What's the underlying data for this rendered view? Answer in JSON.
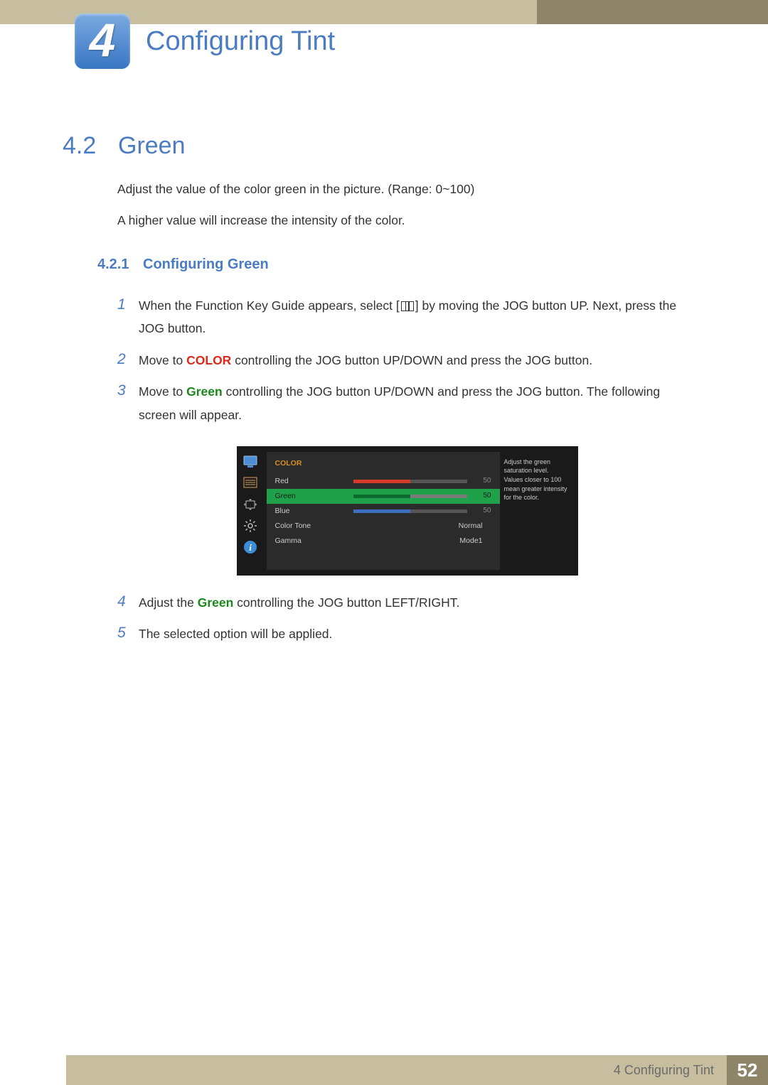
{
  "header": {
    "chapter_number": "4",
    "title": "Configuring Tint"
  },
  "section": {
    "number": "4.2",
    "title": "Green",
    "intro_1": "Adjust the value of the color green in the picture. (Range: 0~100)",
    "intro_2": "A higher value will increase the intensity of the color."
  },
  "subsection": {
    "number": "4.2.1",
    "title": "Configuring Green"
  },
  "steps": {
    "s1a": "When the Function Key Guide appears, select [",
    "s1b": "] by moving the JOG button UP. Next, press the JOG button.",
    "s2a": "Move to ",
    "s2_color": "COLOR",
    "s2b": " controlling the JOG button UP/DOWN and press the JOG button.",
    "s3a": "Move to ",
    "s3_green": "Green",
    "s3b": " controlling the JOG button UP/DOWN and press the JOG button. The following screen will appear.",
    "s4a": "Adjust the ",
    "s4_green": "Green",
    "s4b": " controlling the JOG button LEFT/RIGHT.",
    "s5": "The selected option will be applied."
  },
  "osd": {
    "header": "COLOR",
    "help_text": "Adjust the green saturation level. Values closer to 100 mean greater intensity for the color.",
    "rows": [
      {
        "label": "Red",
        "value": "50",
        "fill_pct": 50,
        "fill_color": "#d63b2a",
        "track_color": "#555555",
        "selected": false
      },
      {
        "label": "Green",
        "value": "50",
        "fill_pct": 50,
        "fill_color": "#0b6b2f",
        "track_color": "#7a7a7a",
        "selected": true
      },
      {
        "label": "Blue",
        "value": "50",
        "fill_pct": 50,
        "fill_color": "#3d6fbf",
        "track_color": "#555555",
        "selected": false
      }
    ],
    "text_rows": [
      {
        "label": "Color Tone",
        "value": "Normal"
      },
      {
        "label": "Gamma",
        "value": "Mode1"
      }
    ],
    "colors": {
      "panel_bg": "#1a1a1a",
      "main_bg": "#2b2b2b",
      "header_color": "#d8901f",
      "selected_bg": "#1fa14a"
    }
  },
  "footer": {
    "text": "4 Configuring Tint",
    "page": "52"
  }
}
